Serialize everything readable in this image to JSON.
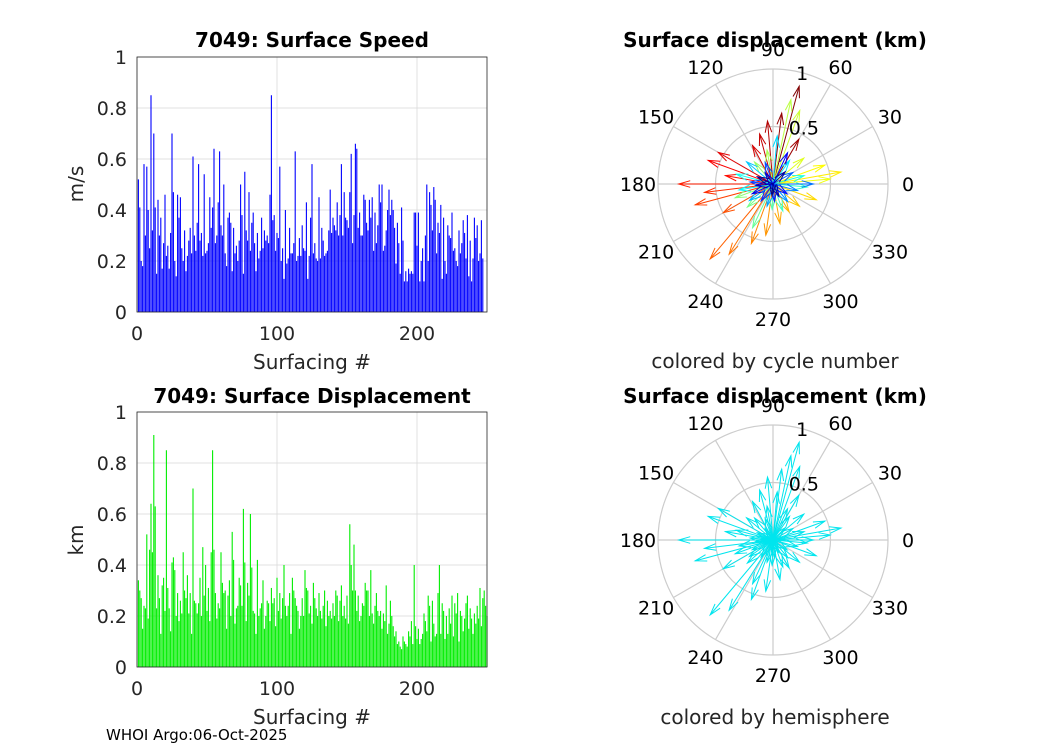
{
  "footer": "WHOI Argo:06-Oct-2025",
  "colors": {
    "speed_bars": "#0000ff",
    "disp_bars": "#00ee00",
    "hemisphere": "#00e5ee",
    "grid": "#d9d9d9",
    "polar_grid": "#cccccc"
  },
  "chart_data": [
    {
      "id": "speed",
      "type": "bar",
      "title": "7049: Surface Speed",
      "xlabel": "Surfacing #",
      "ylabel": "m/s",
      "xlim": [
        0,
        250
      ],
      "ylim": [
        0,
        1
      ],
      "xticks": [
        0,
        100,
        200
      ],
      "yticks": [
        0,
        0.2,
        0.4,
        0.6,
        0.8,
        1
      ],
      "ytick_labels": [
        "0",
        "0.2",
        "0.4",
        "0.6",
        "0.8",
        "1"
      ],
      "values": [
        0.52,
        0.41,
        0.2,
        0.18,
        0.58,
        0.3,
        0.57,
        0.4,
        0.25,
        0.85,
        0.32,
        0.7,
        0.41,
        0.15,
        0.44,
        0.3,
        0.37,
        0.17,
        0.27,
        0.46,
        0.22,
        0.26,
        0.17,
        0.31,
        0.7,
        0.47,
        0.2,
        0.14,
        0.46,
        0.37,
        0.45,
        0.25,
        0.2,
        0.32,
        0.16,
        0.22,
        0.28,
        0.33,
        0.23,
        0.61,
        0.3,
        0.24,
        0.35,
        0.58,
        0.28,
        0.31,
        0.22,
        0.54,
        0.23,
        0.24,
        0.27,
        0.45,
        0.33,
        0.41,
        0.64,
        0.27,
        0.3,
        0.43,
        0.63,
        0.34,
        0.3,
        0.5,
        0.23,
        0.18,
        0.37,
        0.39,
        0.35,
        0.16,
        0.33,
        0.23,
        0.26,
        0.2,
        0.28,
        0.5,
        0.38,
        0.15,
        0.55,
        0.32,
        0.28,
        0.47,
        0.24,
        0.35,
        0.39,
        0.27,
        0.16,
        0.31,
        0.21,
        0.24,
        0.37,
        0.25,
        0.32,
        0.28,
        0.3,
        0.27,
        0.46,
        0.85,
        0.36,
        0.38,
        0.24,
        0.31,
        0.29,
        0.57,
        0.2,
        0.25,
        0.13,
        0.4,
        0.19,
        0.21,
        0.33,
        0.23,
        0.23,
        0.27,
        0.63,
        0.2,
        0.22,
        0.29,
        0.22,
        0.34,
        0.25,
        0.24,
        0.43,
        0.13,
        0.22,
        0.37,
        0.58,
        0.23,
        0.27,
        0.21,
        0.2,
        0.45,
        0.21,
        0.33,
        0.28,
        0.22,
        0.23,
        0.24,
        0.32,
        0.48,
        0.31,
        0.37,
        0.34,
        0.32,
        0.43,
        0.3,
        0.38,
        0.58,
        0.3,
        0.47,
        0.37,
        0.36,
        0.33,
        0.47,
        0.62,
        0.27,
        0.38,
        0.66,
        0.64,
        0.33,
        0.39,
        0.3,
        0.3,
        0.46,
        0.44,
        0.35,
        0.32,
        0.44,
        0.37,
        0.45,
        0.24,
        0.39,
        0.27,
        0.34,
        0.5,
        0.43,
        0.5,
        0.24,
        0.26,
        0.32,
        0.4,
        0.48,
        0.38,
        0.44,
        0.4,
        0.33,
        0.19,
        0.35,
        0.27,
        0.15,
        0.41,
        0.28,
        0.12,
        0.16,
        0.12,
        0.17,
        0.15,
        0.16,
        0.15,
        0.39,
        0.39,
        0.26,
        0.39,
        0.12,
        0.2,
        0.25,
        0.12,
        0.3,
        0.5,
        0.2,
        0.47,
        0.42,
        0.32,
        0.49,
        0.44,
        0.23,
        0.35,
        0.31,
        0.42,
        0.13,
        0.37,
        0.2,
        0.15,
        0.34,
        0.3,
        0.29,
        0.39,
        0.24,
        0.25,
        0.2,
        0.18,
        0.32,
        0.23,
        0.27,
        0.36,
        0.31,
        0.21,
        0.38,
        0.14,
        0.28,
        0.12,
        0.21,
        0.37,
        0.29,
        0.34,
        0.2,
        0.23,
        0.36,
        0.21
      ]
    },
    {
      "id": "displacement",
      "type": "bar",
      "title": "7049: Surface Displacement",
      "xlabel": "Surfacing #",
      "ylabel": "km",
      "xlim": [
        0,
        250
      ],
      "ylim": [
        0,
        1
      ],
      "xticks": [
        0,
        100,
        200
      ],
      "yticks": [
        0,
        0.2,
        0.4,
        0.6,
        0.8,
        1
      ],
      "ytick_labels": [
        "0",
        "0.2",
        "0.4",
        "0.6",
        "0.8",
        "1"
      ],
      "values": [
        0.34,
        0.3,
        0.27,
        0.15,
        0.24,
        0.23,
        0.52,
        0.19,
        0.46,
        0.64,
        0.45,
        0.91,
        0.63,
        0.23,
        0.36,
        0.27,
        0.13,
        0.32,
        0.35,
        0.22,
        0.85,
        0.31,
        0.23,
        0.14,
        0.41,
        0.43,
        0.38,
        0.2,
        0.29,
        0.18,
        0.26,
        0.21,
        0.45,
        0.3,
        0.27,
        0.36,
        0.21,
        0.29,
        0.13,
        0.7,
        0.26,
        0.25,
        0.21,
        0.25,
        0.35,
        0.2,
        0.47,
        0.28,
        0.4,
        0.22,
        0.31,
        0.18,
        0.45,
        0.85,
        0.46,
        0.29,
        0.19,
        0.25,
        0.23,
        0.45,
        0.33,
        0.29,
        0.3,
        0.15,
        0.28,
        0.34,
        0.2,
        0.53,
        0.42,
        0.17,
        0.23,
        0.24,
        0.35,
        0.32,
        0.24,
        0.62,
        0.41,
        0.18,
        0.33,
        0.28,
        0.6,
        0.39,
        0.22,
        0.21,
        0.13,
        0.42,
        0.2,
        0.23,
        0.25,
        0.34,
        0.15,
        0.2,
        0.26,
        0.25,
        0.18,
        0.31,
        0.25,
        0.27,
        0.16,
        0.35,
        0.22,
        0.29,
        0.19,
        0.27,
        0.4,
        0.24,
        0.2,
        0.24,
        0.29,
        0.13,
        0.35,
        0.3,
        0.27,
        0.24,
        0.22,
        0.15,
        0.2,
        0.27,
        0.2,
        0.38,
        0.31,
        0.3,
        0.21,
        0.24,
        0.17,
        0.33,
        0.27,
        0.23,
        0.2,
        0.29,
        0.22,
        0.19,
        0.24,
        0.3,
        0.16,
        0.26,
        0.2,
        0.22,
        0.19,
        0.25,
        0.2,
        0.3,
        0.28,
        0.18,
        0.26,
        0.32,
        0.2,
        0.24,
        0.19,
        0.28,
        0.17,
        0.56,
        0.4,
        0.3,
        0.48,
        0.3,
        0.22,
        0.28,
        0.18,
        0.2,
        0.25,
        0.24,
        0.33,
        0.3,
        0.3,
        0.2,
        0.38,
        0.21,
        0.17,
        0.24,
        0.29,
        0.22,
        0.2,
        0.22,
        0.15,
        0.21,
        0.18,
        0.32,
        0.13,
        0.17,
        0.26,
        0.2,
        0.16,
        0.12,
        0.14,
        0.09,
        0.1,
        0.08,
        0.07,
        0.12,
        0.1,
        0.09,
        0.08,
        0.14,
        0.12,
        0.18,
        0.09,
        0.4,
        0.16,
        0.11,
        0.15,
        0.09,
        0.11,
        0.13,
        0.21,
        0.18,
        0.14,
        0.28,
        0.24,
        0.1,
        0.26,
        0.17,
        0.12,
        0.13,
        0.29,
        0.4,
        0.13,
        0.25,
        0.22,
        0.11,
        0.2,
        0.13,
        0.23,
        0.17,
        0.28,
        0.12,
        0.25,
        0.21,
        0.29,
        0.1,
        0.22,
        0.2,
        0.14,
        0.19,
        0.25,
        0.28,
        0.15,
        0.23,
        0.19,
        0.13,
        0.21,
        0.17,
        0.24,
        0.19,
        0.31,
        0.16,
        0.27,
        0.3,
        0.24,
        0.2
      ]
    },
    {
      "id": "polar_cycle",
      "type": "compass",
      "title": "Surface displacement (km)",
      "caption": "colored by cycle number",
      "rmax": 1,
      "rtick_labels": [
        "0.5",
        "1"
      ],
      "theta_labels": [
        "0",
        "30",
        "60",
        "90",
        "120",
        "150",
        "180",
        "210",
        "240",
        "270",
        "300",
        "330"
      ],
      "colormap": "jet",
      "vectors": [
        {
          "angle": 75,
          "r": 0.88
        },
        {
          "angle": 83,
          "r": 0.62
        },
        {
          "angle": 60,
          "r": 0.45
        },
        {
          "angle": 95,
          "r": 0.55
        },
        {
          "angle": 105,
          "r": 0.45
        },
        {
          "angle": 118,
          "r": 0.38
        },
        {
          "angle": 150,
          "r": 0.55
        },
        {
          "angle": 160,
          "r": 0.6
        },
        {
          "angle": 170,
          "r": 0.42
        },
        {
          "angle": 180,
          "r": 0.82
        },
        {
          "angle": 187,
          "r": 0.6
        },
        {
          "angle": 195,
          "r": 0.7
        },
        {
          "angle": 210,
          "r": 0.5
        },
        {
          "angle": 230,
          "r": 0.85
        },
        {
          "angle": 238,
          "r": 0.72
        },
        {
          "angle": 250,
          "r": 0.55
        },
        {
          "angle": 262,
          "r": 0.45
        },
        {
          "angle": 280,
          "r": 0.35
        },
        {
          "angle": 300,
          "r": 0.28
        },
        {
          "angle": 320,
          "r": 0.3
        },
        {
          "angle": 340,
          "r": 0.4
        },
        {
          "angle": 10,
          "r": 0.6
        },
        {
          "angle": 20,
          "r": 0.48
        },
        {
          "angle": 5,
          "r": 0.5
        },
        {
          "angle": 40,
          "r": 0.35
        },
        {
          "angle": 70,
          "r": 0.68
        },
        {
          "angle": 78,
          "r": 0.75
        },
        {
          "angle": 100,
          "r": 0.3
        },
        {
          "angle": 130,
          "r": 0.25
        },
        {
          "angle": 200,
          "r": 0.35
        },
        {
          "angle": 222,
          "r": 0.3
        },
        {
          "angle": 245,
          "r": 0.42
        },
        {
          "angle": 268,
          "r": 0.22
        },
        {
          "angle": 290,
          "r": 0.25
        },
        {
          "angle": 355,
          "r": 0.3
        },
        {
          "angle": 15,
          "r": 0.28
        },
        {
          "angle": 165,
          "r": 0.33
        },
        {
          "angle": 190,
          "r": 0.3
        },
        {
          "angle": 55,
          "r": 0.25
        },
        {
          "angle": 85,
          "r": 0.42
        },
        {
          "angle": 140,
          "r": 0.3
        },
        {
          "angle": 215,
          "r": 0.25
        },
        {
          "angle": 255,
          "r": 0.2
        },
        {
          "angle": 310,
          "r": 0.2
        },
        {
          "angle": 345,
          "r": 0.22
        },
        {
          "angle": 0,
          "r": 0.35
        },
        {
          "angle": 30,
          "r": 0.2
        },
        {
          "angle": 110,
          "r": 0.2
        },
        {
          "angle": 175,
          "r": 0.2
        },
        {
          "angle": 235,
          "r": 0.18
        },
        {
          "angle": 275,
          "r": 0.15
        },
        {
          "angle": 325,
          "r": 0.15
        },
        {
          "angle": 65,
          "r": 0.3
        },
        {
          "angle": 205,
          "r": 0.2
        },
        {
          "angle": 125,
          "r": 0.12
        },
        {
          "angle": 185,
          "r": 0.15
        },
        {
          "angle": 295,
          "r": 0.12
        },
        {
          "angle": 45,
          "r": 0.15
        },
        {
          "angle": 155,
          "r": 0.15
        },
        {
          "angle": 265,
          "r": 0.1
        }
      ]
    },
    {
      "id": "polar_hemisphere",
      "type": "compass",
      "title": "Surface displacement (km)",
      "caption": "colored by hemisphere",
      "rmax": 1,
      "rtick_labels": [
        "0.5",
        "1"
      ],
      "theta_labels": [
        "0",
        "30",
        "60",
        "90",
        "120",
        "150",
        "180",
        "210",
        "240",
        "270",
        "300",
        "330"
      ],
      "color": "#00e5ee",
      "vectors": "same as polar_cycle"
    }
  ]
}
